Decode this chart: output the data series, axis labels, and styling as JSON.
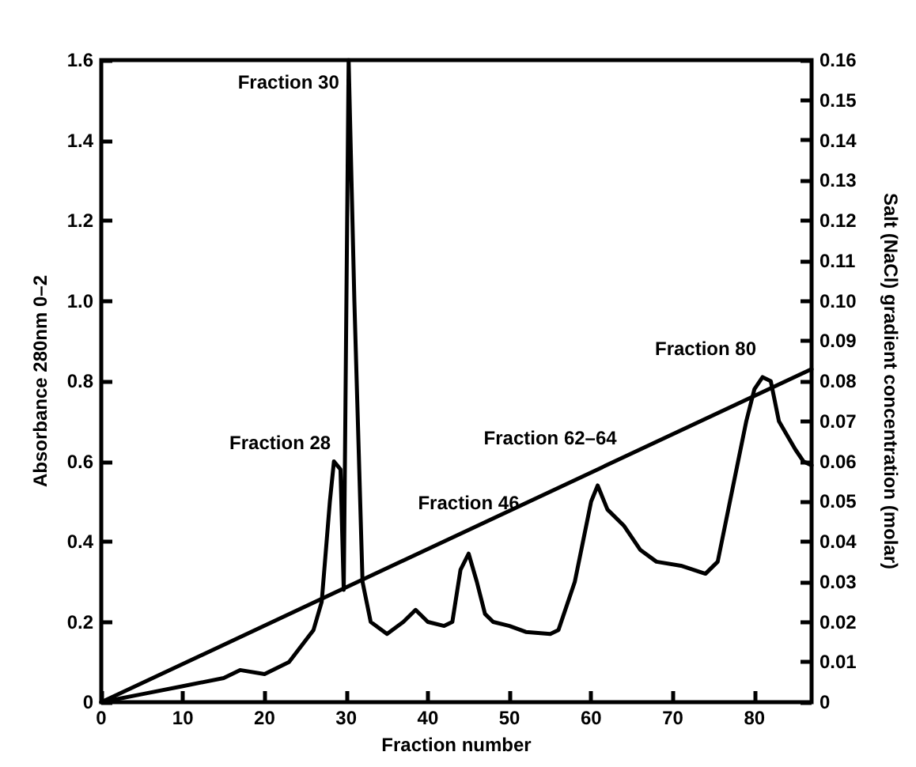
{
  "chart_data": {
    "type": "line",
    "xlabel": "Fraction number",
    "ylabel": "Absorbance 280nm 0–2",
    "y2label": "Salt (NaCl) gradient concentration (molar)",
    "xlim": [
      0,
      87
    ],
    "xticks": [
      0,
      10,
      20,
      30,
      40,
      50,
      60,
      70,
      80
    ],
    "ylim": [
      0,
      1.6
    ],
    "yticks": [
      0,
      0.2,
      0.4,
      0.6,
      0.8,
      {
        "value": 1,
        "label": "1.0"
      },
      1.2,
      1.4,
      1.6
    ],
    "y2lim": [
      0,
      0.16
    ],
    "y2ticks": [
      0,
      0.01,
      0.02,
      0.03,
      0.04,
      0.05,
      0.06,
      0.07,
      0.08,
      0.09,
      {
        "value": 0.1,
        "label": "0.10"
      },
      0.11,
      0.12,
      0.13,
      0.14,
      0.15,
      0.16
    ],
    "grid": false,
    "marker": "none",
    "line_style": "solid",
    "series": [
      {
        "color": "#000000",
        "x": [
          0,
          5,
          10,
          15,
          17,
          20,
          23,
          26,
          27,
          28,
          28.5,
          29.3,
          29.7,
          30.3,
          31,
          32,
          33,
          35,
          37,
          38.5,
          40,
          42,
          43,
          44,
          45,
          46,
          47,
          48,
          50,
          52,
          55,
          56,
          58,
          59,
          60,
          60.8,
          62,
          64,
          66,
          68,
          71,
          74,
          75.5,
          77,
          79,
          80,
          81,
          82,
          83,
          85,
          86,
          87
        ],
        "values": [
          0,
          0.02,
          0.04,
          0.06,
          0.08,
          0.07,
          0.1,
          0.18,
          0.25,
          0.5,
          0.6,
          0.58,
          0.28,
          1.6,
          1.0,
          0.3,
          0.2,
          0.17,
          0.2,
          0.23,
          0.2,
          0.19,
          0.2,
          0.33,
          0.37,
          0.3,
          0.22,
          0.2,
          0.19,
          0.175,
          0.17,
          0.18,
          0.3,
          0.4,
          0.5,
          0.54,
          0.48,
          0.44,
          0.38,
          0.35,
          0.34,
          0.32,
          0.35,
          0.5,
          0.7,
          0.78,
          0.81,
          0.8,
          0.7,
          0.63,
          0.6,
          0.59
        ]
      },
      {
        "color": "#000000",
        "axis": "y2",
        "x": [
          0,
          87
        ],
        "values": [
          0,
          0.083
        ]
      }
    ],
    "annotations": [
      {
        "text": "Fraction 30",
        "x": 30.3,
        "y": 1.6
      },
      {
        "text": "Fraction 28",
        "x": 28.5,
        "y": 0.6
      },
      {
        "text": "Fraction 46",
        "x": 45,
        "y": 0.37
      },
      {
        "text": "Fraction 62–64",
        "x": 60.8,
        "y": 0.54
      },
      {
        "text": "Fraction 80",
        "x": 81,
        "y": 0.81
      }
    ]
  }
}
